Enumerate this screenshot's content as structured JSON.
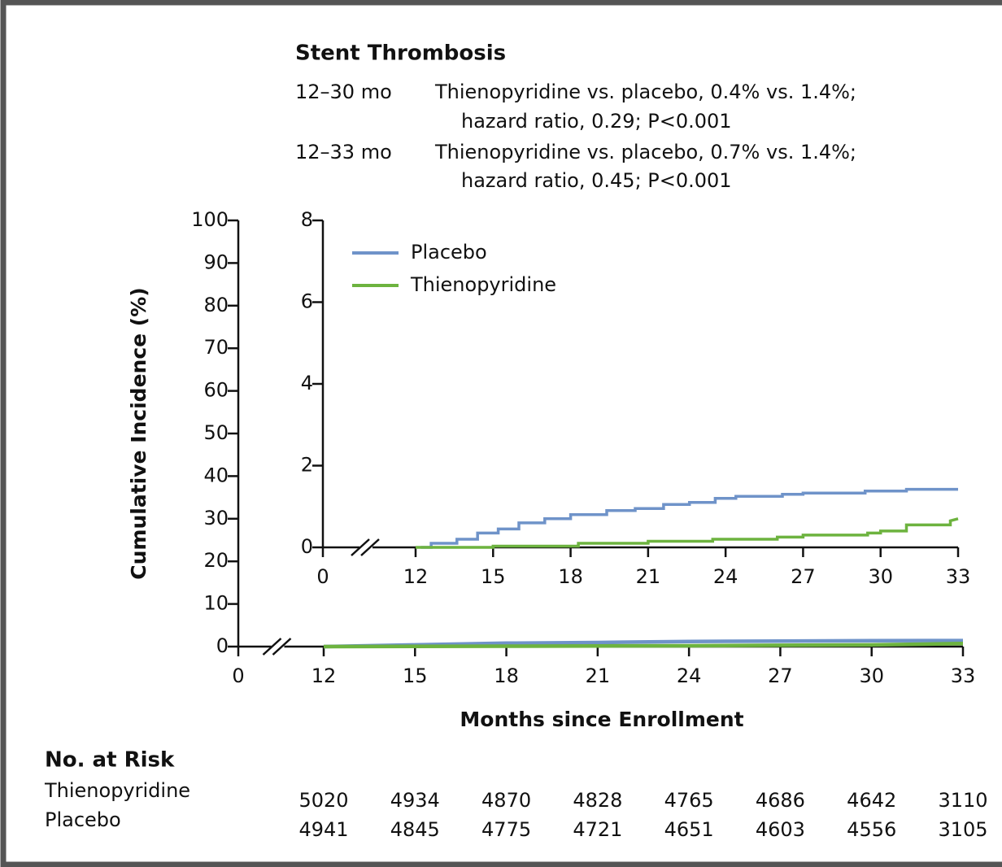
{
  "chart_data": [
    {
      "type": "line",
      "y_label": "Cumulative Incidence (%)",
      "x_label": "Months since Enrollment",
      "xlim": [
        0,
        33
      ],
      "xticks": [
        0,
        12,
        15,
        18,
        21,
        24,
        27,
        30,
        33
      ],
      "axis_break": true,
      "ylim": [
        0,
        100
      ],
      "yticks": [
        0,
        10,
        20,
        30,
        40,
        50,
        60,
        70,
        80,
        90,
        100
      ],
      "x": [
        12,
        15,
        18,
        21,
        24,
        27,
        30,
        33
      ],
      "series": [
        {
          "color": "#6f93c9",
          "values": [
            0,
            0.4,
            0.8,
            0.95,
            1.2,
            1.3,
            1.38,
            1.42
          ]
        },
        {
          "color": "#6db33f",
          "values": [
            0,
            0.03,
            0.1,
            0.15,
            0.2,
            0.3,
            0.4,
            0.7
          ]
        }
      ]
    },
    {
      "type": "line",
      "title": "Stent Thrombosis",
      "annotations": [
        {
          "period": "12–30 mo",
          "lines": [
            "Thienopyridine vs. placebo, 0.4% vs. 1.4%;",
            "hazard ratio, 0.29; P<0.001"
          ]
        },
        {
          "period": "12–33 mo",
          "lines": [
            "Thienopyridine vs. placebo, 0.7% vs. 1.4%;",
            "hazard ratio, 0.45; P<0.001"
          ]
        }
      ],
      "xlim": [
        0,
        33
      ],
      "xticks": [
        0,
        12,
        15,
        18,
        21,
        24,
        27,
        30,
        33
      ],
      "axis_break": true,
      "ylim": [
        0,
        8
      ],
      "yticks": [
        0,
        2,
        4,
        6,
        8
      ],
      "legend": "upper left",
      "series": [
        {
          "name": "Placebo",
          "color": "#6f93c9",
          "x": [
            12.2,
            12.6,
            12.6,
            13.6,
            13.6,
            14.4,
            14.4,
            15.2,
            15.2,
            16.0,
            16.0,
            17.0,
            17.0,
            18.0,
            18.0,
            19.4,
            19.4,
            20.5,
            20.5,
            21.6,
            21.6,
            22.6,
            22.6,
            23.6,
            23.6,
            24.4,
            24.4,
            26.2,
            26.2,
            27.0,
            27.0,
            29.4,
            29.4,
            31.0,
            31.0,
            33.0
          ],
          "values": [
            0,
            0,
            0.1,
            0.1,
            0.2,
            0.2,
            0.35,
            0.35,
            0.45,
            0.45,
            0.6,
            0.6,
            0.7,
            0.7,
            0.8,
            0.8,
            0.9,
            0.9,
            0.95,
            0.95,
            1.05,
            1.05,
            1.1,
            1.1,
            1.2,
            1.2,
            1.25,
            1.25,
            1.3,
            1.3,
            1.33,
            1.33,
            1.38,
            1.38,
            1.42,
            1.42
          ]
        },
        {
          "name": "Thienopyridine",
          "color": "#6db33f",
          "x": [
            12.0,
            15.0,
            15.0,
            18.3,
            18.3,
            21.0,
            21.0,
            23.5,
            23.5,
            26.0,
            26.0,
            27.0,
            27.0,
            29.5,
            29.5,
            30.0,
            30.0,
            31.0,
            31.0,
            32.7,
            32.7,
            33.0
          ],
          "values": [
            0,
            0,
            0.03,
            0.03,
            0.1,
            0.1,
            0.15,
            0.15,
            0.2,
            0.2,
            0.25,
            0.25,
            0.3,
            0.3,
            0.35,
            0.35,
            0.4,
            0.4,
            0.55,
            0.55,
            0.65,
            0.7
          ]
        }
      ]
    }
  ],
  "at_risk": {
    "title": "No. at Risk",
    "rows": [
      {
        "name": "Thienopyridine",
        "values": [
          5020,
          4934,
          4870,
          4828,
          4765,
          4686,
          4642,
          3110
        ]
      },
      {
        "name": "Placebo",
        "values": [
          4941,
          4845,
          4775,
          4721,
          4651,
          4603,
          4556,
          3105
        ]
      }
    ]
  }
}
